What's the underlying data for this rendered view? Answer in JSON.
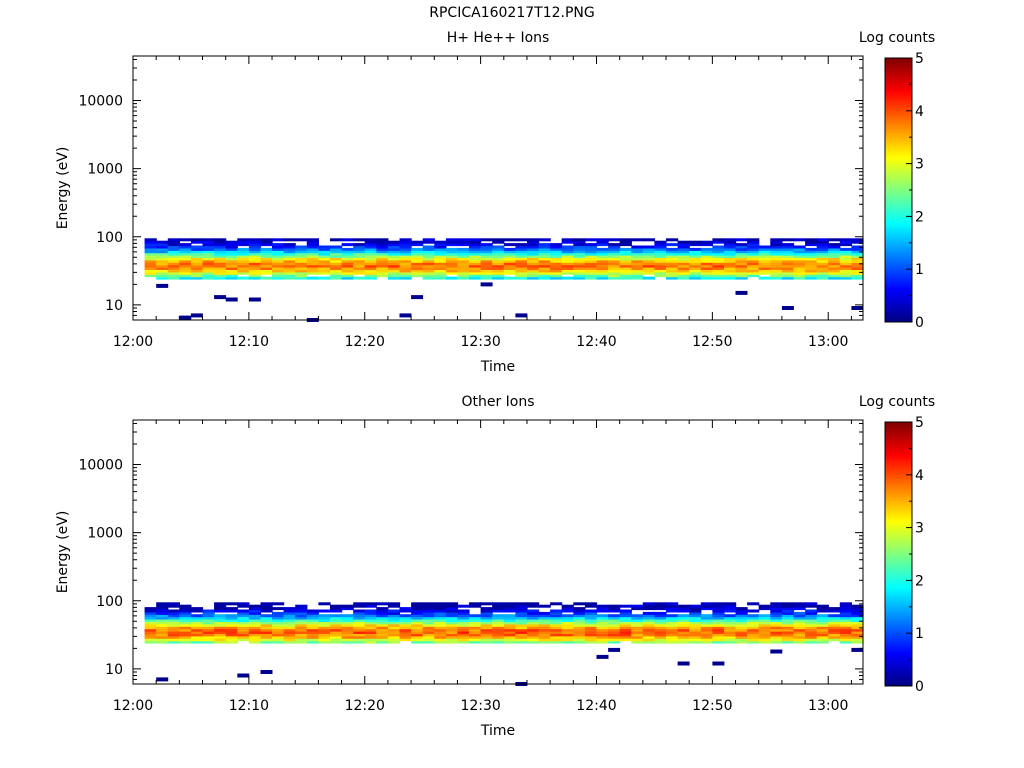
{
  "title": "RPCICA160217T12.PNG",
  "chart_data": [
    {
      "type": "heatmap",
      "title": "H+ He++ Ions",
      "xlabel": "Time",
      "ylabel": "Energy (eV)",
      "x_ticks": [
        "12:00",
        "12:10",
        "12:20",
        "12:30",
        "12:40",
        "12:50",
        "13:00"
      ],
      "y_ticks": [
        "10",
        "100",
        "1000",
        "10000"
      ],
      "y_scale": "log",
      "ylim": [
        6,
        45000
      ],
      "xlim": [
        "12:00",
        "13:03"
      ],
      "colorbar": {
        "label": "Log counts",
        "range": [
          0,
          5
        ],
        "ticks": [
          "0",
          "1",
          "2",
          "3",
          "4",
          "5"
        ]
      },
      "band": {
        "energy_range": [
          24,
          95
        ],
        "peak_energy": 38,
        "peak_log_counts": 3.8
      },
      "sparse_points": [
        {
          "t": "12:02",
          "e": 19
        },
        {
          "t": "12:04",
          "e": 6.5
        },
        {
          "t": "12:05",
          "e": 7
        },
        {
          "t": "12:07",
          "e": 13
        },
        {
          "t": "12:08",
          "e": 12
        },
        {
          "t": "12:10",
          "e": 12
        },
        {
          "t": "12:15",
          "e": 6
        },
        {
          "t": "12:23",
          "e": 7
        },
        {
          "t": "12:24",
          "e": 13
        },
        {
          "t": "12:30",
          "e": 20
        },
        {
          "t": "12:33",
          "e": 7
        },
        {
          "t": "12:52",
          "e": 15
        },
        {
          "t": "12:56",
          "e": 9
        },
        {
          "t": "13:02",
          "e": 9
        }
      ]
    },
    {
      "type": "heatmap",
      "title": "Other Ions",
      "xlabel": "Time",
      "ylabel": "Energy (eV)",
      "x_ticks": [
        "12:00",
        "12:10",
        "12:20",
        "12:30",
        "12:40",
        "12:50",
        "13:00"
      ],
      "y_ticks": [
        "10",
        "100",
        "1000",
        "10000"
      ],
      "y_scale": "log",
      "ylim": [
        6,
        45000
      ],
      "xlim": [
        "12:00",
        "13:03"
      ],
      "colorbar": {
        "label": "Log counts",
        "range": [
          0,
          5
        ],
        "ticks": [
          "0",
          "1",
          "2",
          "3",
          "4",
          "5"
        ]
      },
      "band": {
        "energy_range": [
          24,
          95
        ],
        "peak_energy": 35,
        "peak_log_counts": 3.9
      },
      "sparse_points": [
        {
          "t": "12:02",
          "e": 7
        },
        {
          "t": "12:09",
          "e": 8
        },
        {
          "t": "12:11",
          "e": 9
        },
        {
          "t": "12:33",
          "e": 6
        },
        {
          "t": "12:40",
          "e": 15
        },
        {
          "t": "12:41",
          "e": 19
        },
        {
          "t": "12:47",
          "e": 12
        },
        {
          "t": "12:50",
          "e": 12
        },
        {
          "t": "12:55",
          "e": 18
        },
        {
          "t": "13:02",
          "e": 19
        }
      ]
    }
  ]
}
